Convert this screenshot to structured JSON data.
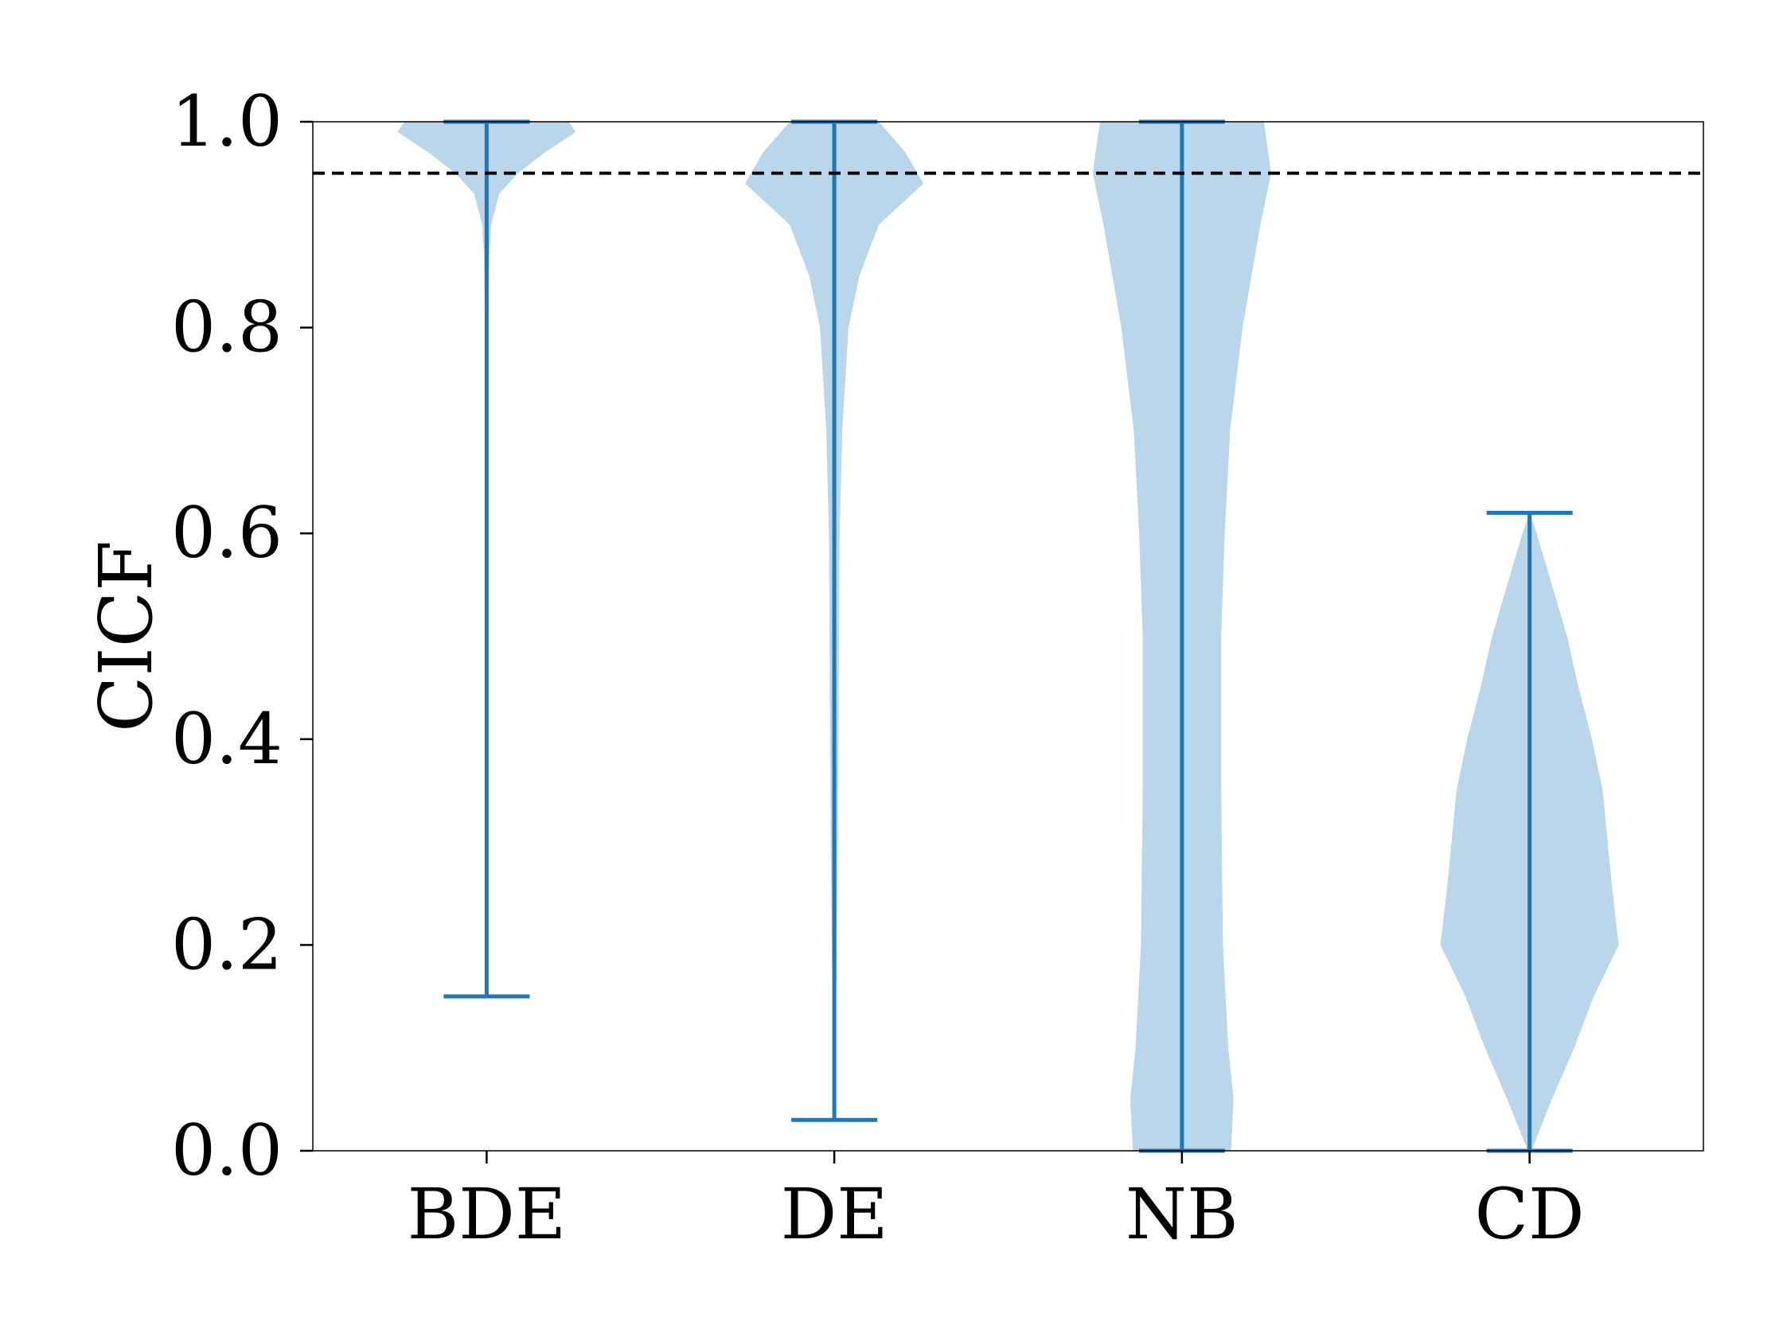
{
  "chart_data": {
    "type": "violin",
    "categories": [
      "BDE",
      "DE",
      "NB",
      "CD"
    ],
    "ylabel": "CICF",
    "xlabel": "",
    "title": "",
    "ylim": [
      0.0,
      1.0
    ],
    "yticks": [
      "0.0",
      "0.2",
      "0.4",
      "0.6",
      "0.8",
      "1.0"
    ],
    "grid": false,
    "reference_line": {
      "y": 0.95,
      "style": "dashed",
      "color": "#000000"
    },
    "colors": {
      "body": "#bad6ea",
      "lines": "#1f77b4"
    },
    "series": [
      {
        "category": "BDE",
        "min": 0.15,
        "max": 1.0,
        "profile": [
          [
            0.15,
            0.0
          ],
          [
            0.3,
            0.0
          ],
          [
            0.5,
            0.003
          ],
          [
            0.6,
            0.004
          ],
          [
            0.7,
            0.01
          ],
          [
            0.8,
            0.015
          ],
          [
            0.87,
            0.03
          ],
          [
            0.9,
            0.05
          ],
          [
            0.93,
            0.14
          ],
          [
            0.95,
            0.35
          ],
          [
            0.97,
            0.65
          ],
          [
            0.99,
            1.0
          ],
          [
            1.0,
            0.92
          ]
        ]
      },
      {
        "category": "DE",
        "min": 0.03,
        "max": 1.0,
        "profile": [
          [
            0.03,
            0.0
          ],
          [
            0.15,
            0.02
          ],
          [
            0.3,
            0.04
          ],
          [
            0.45,
            0.05
          ],
          [
            0.6,
            0.06
          ],
          [
            0.7,
            0.09
          ],
          [
            0.8,
            0.16
          ],
          [
            0.85,
            0.28
          ],
          [
            0.9,
            0.5
          ],
          [
            0.94,
            1.0
          ],
          [
            0.97,
            0.8
          ],
          [
            1.0,
            0.5
          ]
        ]
      },
      {
        "category": "NB",
        "min": 0.0,
        "max": 1.0,
        "profile": [
          [
            0.0,
            0.55
          ],
          [
            0.05,
            0.58
          ],
          [
            0.1,
            0.52
          ],
          [
            0.2,
            0.46
          ],
          [
            0.35,
            0.44
          ],
          [
            0.5,
            0.44
          ],
          [
            0.6,
            0.48
          ],
          [
            0.7,
            0.54
          ],
          [
            0.8,
            0.68
          ],
          [
            0.9,
            0.88
          ],
          [
            0.95,
            1.0
          ],
          [
            1.0,
            0.92
          ]
        ]
      },
      {
        "category": "CD",
        "min": 0.0,
        "max": 0.62,
        "profile": [
          [
            0.0,
            0.02
          ],
          [
            0.05,
            0.25
          ],
          [
            0.1,
            0.5
          ],
          [
            0.15,
            0.72
          ],
          [
            0.2,
            1.0
          ],
          [
            0.26,
            0.92
          ],
          [
            0.35,
            0.82
          ],
          [
            0.4,
            0.7
          ],
          [
            0.45,
            0.55
          ],
          [
            0.5,
            0.42
          ],
          [
            0.55,
            0.25
          ],
          [
            0.6,
            0.08
          ],
          [
            0.62,
            0.0
          ]
        ]
      }
    ]
  }
}
